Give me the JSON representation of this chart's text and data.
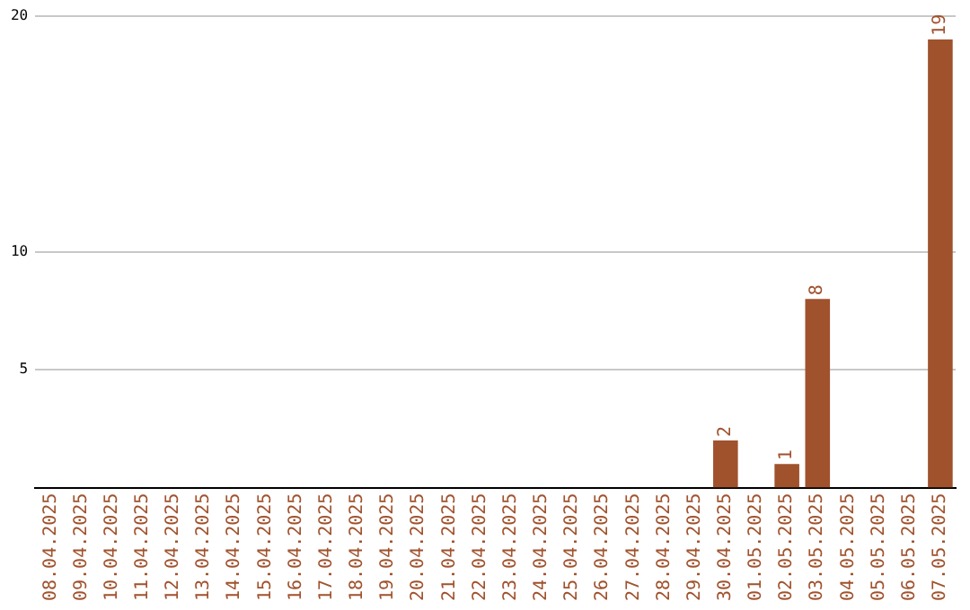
{
  "chart_data": {
    "type": "bar",
    "categories": [
      "08.04.2025",
      "09.04.2025",
      "10.04.2025",
      "11.04.2025",
      "12.04.2025",
      "13.04.2025",
      "14.04.2025",
      "15.04.2025",
      "16.04.2025",
      "17.04.2025",
      "18.04.2025",
      "19.04.2025",
      "20.04.2025",
      "21.04.2025",
      "22.04.2025",
      "23.04.2025",
      "24.04.2025",
      "25.04.2025",
      "26.04.2025",
      "27.04.2025",
      "28.04.2025",
      "29.04.2025",
      "30.04.2025",
      "01.05.2025",
      "02.05.2025",
      "03.05.2025",
      "04.05.2025",
      "05.05.2025",
      "06.05.2025",
      "07.05.2025"
    ],
    "values": [
      0,
      0,
      0,
      0,
      0,
      0,
      0,
      0,
      0,
      0,
      0,
      0,
      0,
      0,
      0,
      0,
      0,
      0,
      0,
      0,
      0,
      0,
      2,
      0,
      1,
      8,
      0,
      0,
      0,
      19
    ],
    "value_labels": [
      null,
      null,
      null,
      null,
      null,
      null,
      null,
      null,
      null,
      null,
      null,
      null,
      null,
      null,
      null,
      null,
      null,
      null,
      null,
      null,
      null,
      null,
      "2",
      null,
      "1",
      "8",
      null,
      null,
      null,
      "19"
    ],
    "color": "#a0522d",
    "ylim": [
      0,
      20
    ],
    "yticks": [
      5,
      10,
      20
    ],
    "grid": "y",
    "legend": false
  }
}
